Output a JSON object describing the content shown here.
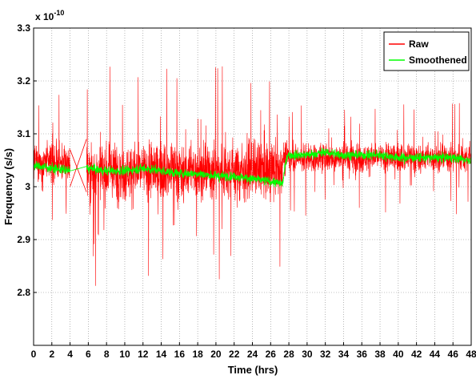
{
  "chart_data": {
    "type": "line",
    "title": "",
    "xlabel": "Time (hrs)",
    "ylabel": "Frequency (s/s)",
    "exponent_label": "x 10",
    "exponent_power": "-10",
    "xlim": [
      0,
      48
    ],
    "ylim": [
      2.7,
      3.3
    ],
    "grid": true,
    "grid_style": "dotted",
    "legend_position": "top-right",
    "x_ticks": [
      "0",
      "2",
      "4",
      "6",
      "8",
      "10",
      "12",
      "14",
      "16",
      "18",
      "20",
      "22",
      "24",
      "26",
      "28",
      "30",
      "32",
      "34",
      "36",
      "38",
      "40",
      "42",
      "44",
      "46",
      "48"
    ],
    "y_ticks": [
      "2.8",
      "2.9",
      "3",
      "3.1",
      "3.2",
      "3.3"
    ],
    "x_tick_values": [
      0,
      2,
      4,
      6,
      8,
      10,
      12,
      14,
      16,
      18,
      20,
      22,
      24,
      26,
      28,
      30,
      32,
      34,
      36,
      38,
      40,
      42,
      44,
      46,
      48
    ],
    "y_tick_values": [
      2.8,
      2.9,
      3.0,
      3.1,
      3.2,
      3.3
    ],
    "gap": [
      4.0,
      5.8
    ],
    "series": [
      {
        "name": "Raw",
        "color": "#ff0000",
        "segments": [
          {
            "x_range": [
              0,
              4.0
            ],
            "mean": 3.04,
            "band": [
              3.0,
              3.09
            ],
            "extremes": [
              2.89,
              3.18
            ]
          },
          {
            "x_range": [
              5.8,
              27.3
            ],
            "mean": 3.02,
            "band": [
              2.96,
              3.1
            ],
            "extremes": [
              2.76,
              3.25
            ]
          },
          {
            "x_range": [
              27.3,
              48
            ],
            "mean": 3.055,
            "band": [
              3.02,
              3.09
            ],
            "extremes": [
              2.94,
              3.17
            ]
          }
        ]
      },
      {
        "name": "Smoothened",
        "color": "#00ff00",
        "points": [
          [
            0,
            3.04
          ],
          [
            2,
            3.035
          ],
          [
            4,
            3.03
          ],
          [
            5.8,
            3.035
          ],
          [
            8,
            3.03
          ],
          [
            10,
            3.03
          ],
          [
            12,
            3.035
          ],
          [
            14,
            3.03
          ],
          [
            16,
            3.025
          ],
          [
            18,
            3.025
          ],
          [
            20,
            3.02
          ],
          [
            22,
            3.02
          ],
          [
            24,
            3.015
          ],
          [
            26,
            3.01
          ],
          [
            27.3,
            3.005
          ],
          [
            27.8,
            3.06
          ],
          [
            30,
            3.06
          ],
          [
            32,
            3.065
          ],
          [
            34,
            3.06
          ],
          [
            36,
            3.06
          ],
          [
            38,
            3.06
          ],
          [
            40,
            3.055
          ],
          [
            42,
            3.055
          ],
          [
            44,
            3.055
          ],
          [
            46,
            3.055
          ],
          [
            48,
            3.05
          ]
        ]
      }
    ]
  }
}
